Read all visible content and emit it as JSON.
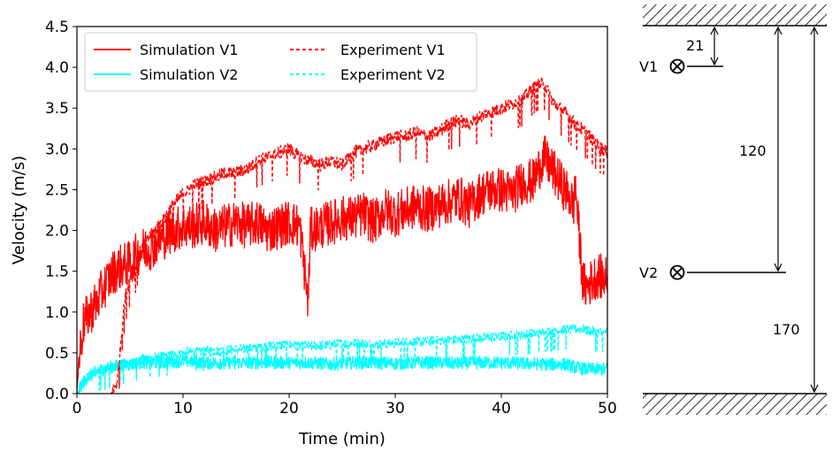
{
  "chart_data": {
    "type": "line",
    "xlabel": "Time (min)",
    "ylabel": "Velocity (m/s)",
    "xlim": [
      0,
      50
    ],
    "ylim": [
      0,
      4.5
    ],
    "xticks": [
      "0",
      "10",
      "20",
      "30",
      "40",
      "50"
    ],
    "yticks": [
      "0.0",
      "0.5",
      "1.0",
      "1.5",
      "2.0",
      "2.5",
      "3.0",
      "3.5",
      "4.0",
      "4.5"
    ],
    "grid": false,
    "legend_position": "top-left",
    "series": [
      {
        "name": "Simulation V1",
        "color": "#ff0000",
        "style": "solid",
        "x": [
          0,
          0.3,
          0.6,
          1,
          1.5,
          2,
          2.5,
          3,
          3.5,
          4,
          5,
          6,
          7,
          8,
          9,
          10,
          11,
          12,
          13,
          14,
          15,
          16,
          17,
          18,
          19,
          20,
          21,
          21.8,
          22,
          23,
          24,
          25,
          26,
          27,
          28,
          29,
          30,
          31,
          32,
          33,
          34,
          35,
          36,
          37,
          38,
          39,
          40,
          41,
          42,
          43,
          44,
          45,
          46,
          46.5,
          46.8,
          47,
          47.3,
          47.7,
          48,
          49,
          50
        ],
        "y": [
          0.05,
          0.55,
          0.85,
          0.95,
          1.05,
          1.15,
          1.3,
          1.4,
          1.5,
          1.55,
          1.6,
          1.75,
          1.8,
          1.9,
          2.0,
          2.05,
          2.05,
          2.1,
          2.0,
          2.05,
          2.1,
          2.05,
          2.1,
          2.0,
          2.05,
          2.1,
          2.05,
          1.1,
          2.0,
          2.05,
          2.1,
          2.15,
          2.15,
          2.2,
          2.1,
          2.25,
          2.2,
          2.25,
          2.3,
          2.25,
          2.3,
          2.35,
          2.4,
          2.3,
          2.45,
          2.5,
          2.5,
          2.45,
          2.6,
          2.6,
          2.9,
          2.7,
          2.5,
          2.4,
          2.3,
          2.55,
          2.0,
          1.35,
          1.3,
          1.45,
          1.4
        ],
        "noise_amplitude": 0.28
      },
      {
        "name": "Experiment V1",
        "color": "#ff0000",
        "style": "dashed",
        "x": [
          3.2,
          3.5,
          3.8,
          4.0,
          4.3,
          4.6,
          5,
          5.5,
          6,
          7,
          8,
          9,
          10,
          11,
          12,
          13,
          14,
          15,
          16,
          17,
          18,
          19,
          20,
          21,
          22,
          23,
          24,
          25,
          26,
          27,
          28,
          29,
          30,
          31,
          32,
          33,
          34,
          35,
          36,
          37,
          38,
          39,
          40,
          41,
          42,
          43,
          44,
          45,
          46,
          47,
          48,
          49,
          50
        ],
        "y": [
          0.0,
          0.05,
          0.15,
          0.4,
          0.9,
          1.2,
          1.4,
          1.55,
          1.75,
          1.95,
          2.1,
          2.3,
          2.45,
          2.55,
          2.6,
          2.65,
          2.7,
          2.7,
          2.75,
          2.85,
          2.9,
          2.95,
          3.0,
          2.9,
          2.85,
          2.8,
          2.85,
          2.8,
          2.95,
          3.0,
          3.05,
          3.1,
          3.15,
          3.15,
          3.2,
          3.15,
          3.2,
          3.3,
          3.35,
          3.3,
          3.4,
          3.45,
          3.5,
          3.55,
          3.6,
          3.75,
          3.8,
          3.55,
          3.45,
          3.3,
          3.2,
          3.05,
          2.95
        ],
        "noise_amplitude": 0.08
      },
      {
        "name": "Simulation V2",
        "color": "#00ffff",
        "style": "solid",
        "x": [
          0,
          0.5,
          1,
          2,
          3,
          4,
          5,
          6,
          8,
          10,
          12,
          14,
          16,
          18,
          20,
          22,
          24,
          26,
          28,
          30,
          32,
          34,
          36,
          38,
          40,
          42,
          44,
          46,
          47,
          48,
          50
        ],
        "y": [
          0.0,
          0.12,
          0.2,
          0.28,
          0.32,
          0.34,
          0.36,
          0.38,
          0.38,
          0.4,
          0.38,
          0.38,
          0.38,
          0.38,
          0.38,
          0.38,
          0.36,
          0.38,
          0.38,
          0.37,
          0.38,
          0.38,
          0.37,
          0.38,
          0.38,
          0.37,
          0.36,
          0.36,
          0.32,
          0.3,
          0.3
        ],
        "noise_amplitude": 0.08
      },
      {
        "name": "Experiment V2",
        "color": "#00ffff",
        "style": "dashed",
        "x": [
          0,
          1,
          2,
          3,
          4,
          5,
          6,
          8,
          10,
          12,
          14,
          16,
          18,
          20,
          22,
          24,
          26,
          28,
          30,
          32,
          34,
          36,
          38,
          40,
          42,
          44,
          46,
          47,
          48,
          49,
          50
        ],
        "y": [
          0.0,
          0.2,
          0.28,
          0.3,
          0.35,
          0.38,
          0.42,
          0.45,
          0.5,
          0.52,
          0.53,
          0.55,
          0.58,
          0.6,
          0.58,
          0.6,
          0.62,
          0.6,
          0.62,
          0.63,
          0.65,
          0.66,
          0.68,
          0.7,
          0.72,
          0.75,
          0.78,
          0.8,
          0.78,
          0.75,
          0.75
        ],
        "noise_amplitude": 0.06
      }
    ]
  },
  "diagram": {
    "label_21": "21",
    "label_120": "120",
    "label_170": "170",
    "label_v1": "V1",
    "label_v2": "V2"
  }
}
